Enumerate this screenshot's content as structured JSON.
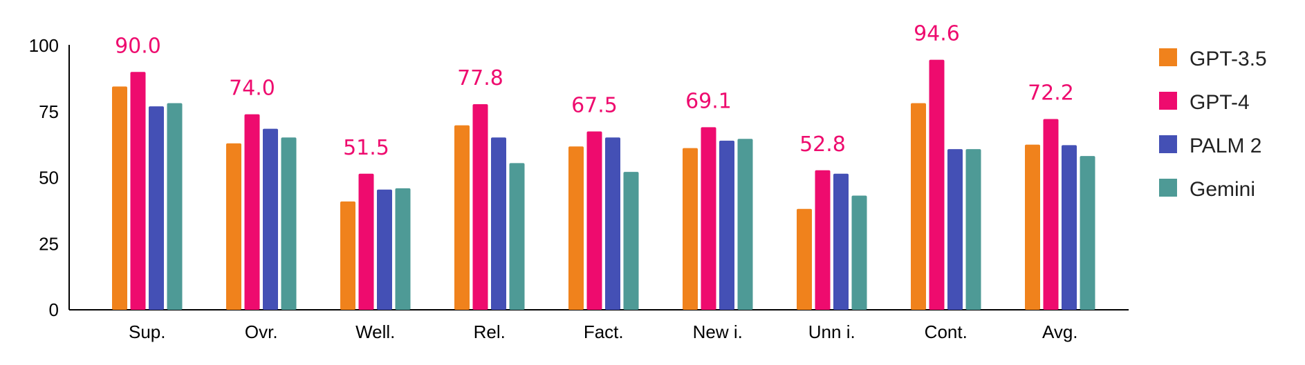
{
  "chart_data": {
    "type": "bar",
    "categories": [
      "Sup.",
      "Ovr.",
      "Well.",
      "Rel.",
      "Fact.",
      "New i.",
      "Unn i.",
      "Cont.",
      "Avg."
    ],
    "series": [
      {
        "name": "GPT-3.5",
        "color": "#F0821C",
        "values": [
          84.5,
          63.0,
          41.0,
          69.8,
          61.8,
          61.2,
          38.2,
          78.2,
          62.5
        ]
      },
      {
        "name": "GPT-4",
        "color": "#EE0B6E",
        "values": [
          90.0,
          74.0,
          51.5,
          77.8,
          67.5,
          69.1,
          52.8,
          94.6,
          72.2
        ]
      },
      {
        "name": "PALM 2",
        "color": "#4450B5",
        "values": [
          77.0,
          68.5,
          45.5,
          65.2,
          65.2,
          64.0,
          51.5,
          60.8,
          62.3
        ]
      },
      {
        "name": "Gemini",
        "color": "#4E9A96",
        "values": [
          78.2,
          65.2,
          46.0,
          55.5,
          52.2,
          64.7,
          43.2,
          60.8,
          58.2
        ]
      }
    ],
    "data_labels": [
      "90.0",
      "74.0",
      "51.5",
      "77.8",
      "67.5",
      "69.1",
      "52.8",
      "94.6",
      "72.2"
    ],
    "data_label_color": "#EE0B6E",
    "y_ticks": [
      "0",
      "25",
      "50",
      "75",
      "100"
    ],
    "y_tick_values": [
      0,
      25,
      50,
      75,
      100
    ],
    "ylim": [
      0,
      100
    ],
    "grid": false,
    "legend_position": "right"
  }
}
